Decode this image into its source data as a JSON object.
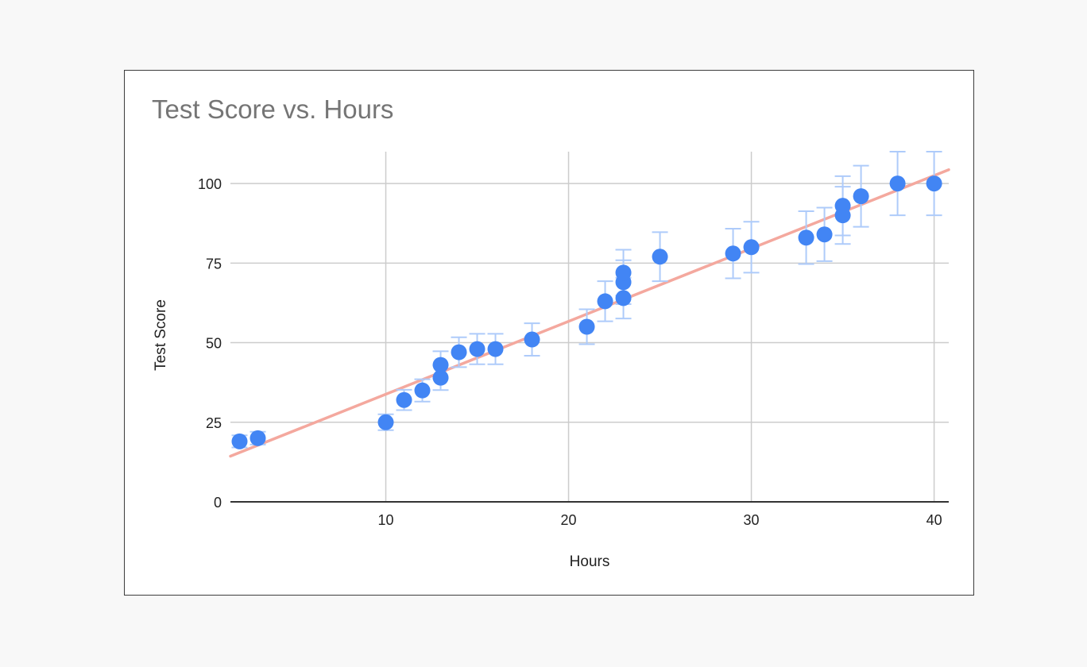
{
  "chart_data": {
    "type": "scatter",
    "title": "Test Score vs. Hours",
    "xlabel": "Hours",
    "ylabel": "Test Score",
    "xlim": [
      1.5,
      40.8
    ],
    "ylim": [
      0,
      110
    ],
    "xticks": [
      10,
      20,
      30,
      40
    ],
    "yticks": [
      0,
      25,
      50,
      75,
      100
    ],
    "grid": true,
    "legend": "none",
    "colors": {
      "points": "#4285f4",
      "error_bars": "#aecbfa",
      "trendline": "#f4a89e",
      "grid": "#cccccc",
      "axis": "#333333",
      "title": "#757575"
    },
    "points": [
      {
        "x": 2,
        "y": 19
      },
      {
        "x": 3,
        "y": 20
      },
      {
        "x": 10,
        "y": 25
      },
      {
        "x": 11,
        "y": 32
      },
      {
        "x": 12,
        "y": 35
      },
      {
        "x": 13,
        "y": 39
      },
      {
        "x": 13,
        "y": 43
      },
      {
        "x": 14,
        "y": 47
      },
      {
        "x": 15,
        "y": 48
      },
      {
        "x": 16,
        "y": 48
      },
      {
        "x": 18,
        "y": 51
      },
      {
        "x": 21,
        "y": 55
      },
      {
        "x": 22,
        "y": 63
      },
      {
        "x": 23,
        "y": 64
      },
      {
        "x": 23,
        "y": 69
      },
      {
        "x": 23,
        "y": 72
      },
      {
        "x": 25,
        "y": 77
      },
      {
        "x": 29,
        "y": 78
      },
      {
        "x": 30,
        "y": 80
      },
      {
        "x": 33,
        "y": 83
      },
      {
        "x": 34,
        "y": 84
      },
      {
        "x": 35,
        "y": 90
      },
      {
        "x": 35,
        "y": 93
      },
      {
        "x": 36,
        "y": 96
      },
      {
        "x": 38,
        "y": 100
      },
      {
        "x": 40,
        "y": 100
      }
    ],
    "error_bar_percent": 10,
    "trendline": {
      "type": "linear",
      "slope": 2.29,
      "intercept": 10.9
    }
  }
}
